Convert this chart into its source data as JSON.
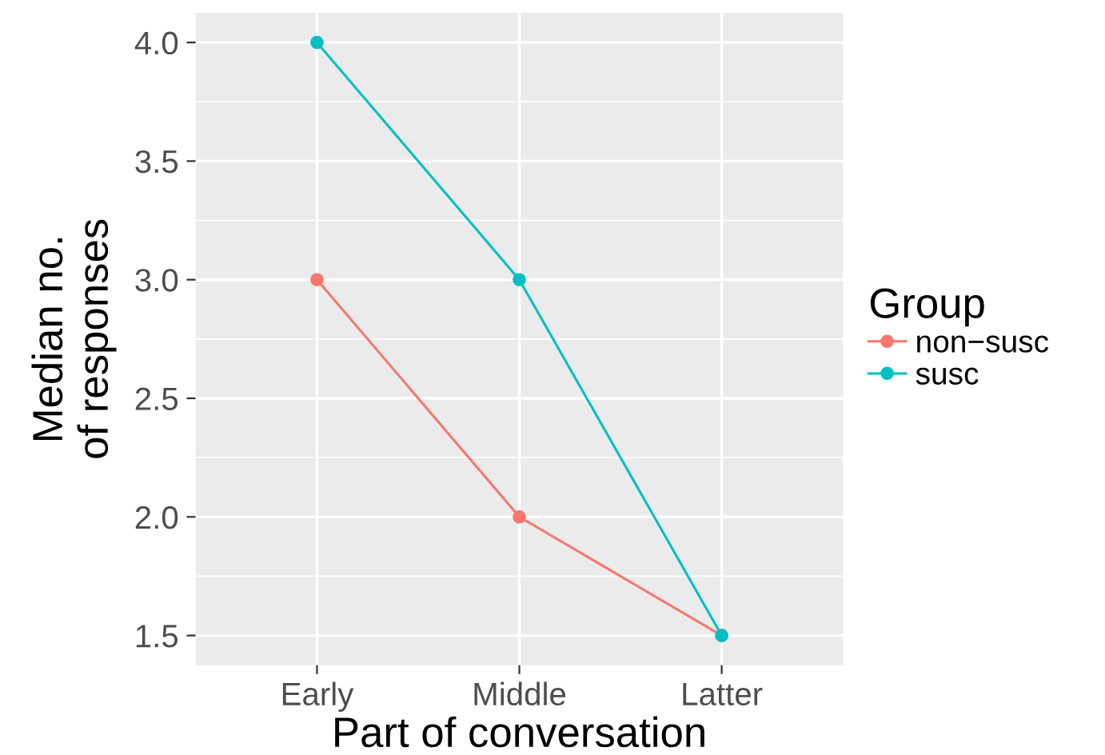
{
  "chart_data": {
    "type": "line",
    "xlabel": "Part of conversation",
    "ylabel": "Median no.\nof responses",
    "legend_title": "Group",
    "categories": [
      "Early",
      "Middle",
      "Latter"
    ],
    "series": [
      {
        "name": "non−susc",
        "color": "#f8766d",
        "values": [
          3.0,
          2.0,
          1.5
        ]
      },
      {
        "name": "susc",
        "color": "#00bfc4",
        "values": [
          4.0,
          3.0,
          1.5
        ]
      }
    ],
    "ylim": [
      1.375,
      4.125
    ],
    "yticks": [
      {
        "value": 1.5,
        "label": "1.5"
      },
      {
        "value": 2.0,
        "label": "2.0"
      },
      {
        "value": 2.5,
        "label": "2.5"
      },
      {
        "value": 3.0,
        "label": "3.0"
      },
      {
        "value": 3.5,
        "label": "3.5"
      },
      {
        "value": 4.0,
        "label": "4.0"
      }
    ],
    "grid": true,
    "legend": "right",
    "marker": "circle",
    "line_style": "solid"
  }
}
